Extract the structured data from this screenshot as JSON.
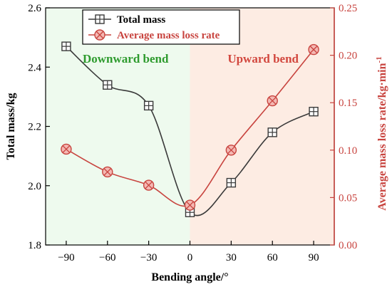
{
  "chart_data": {
    "type": "line",
    "x": [
      -90,
      -60,
      -30,
      0,
      30,
      60,
      90
    ],
    "xticks": [
      "−90",
      "−60",
      "−30",
      "0",
      "30",
      "60",
      "90"
    ],
    "xlabel": "Bending angle/°",
    "xlim": [
      -105,
      105
    ],
    "ylabel_left": "Total mass/kg",
    "ylim_left": [
      1.8,
      2.6
    ],
    "yticks_left": [
      "1.8",
      "2.0",
      "2.2",
      "2.4",
      "2.6"
    ],
    "ylabel_right": "Average mass loss rate/kg·min",
    "ylabel_right_sup": "-1",
    "ylim_right": [
      0.0,
      0.25
    ],
    "yticks_right": [
      "0.00",
      "0.05",
      "0.10",
      "0.15",
      "0.20",
      "0.25"
    ],
    "series": [
      {
        "name": "Total mass",
        "axis": "left",
        "marker": "square-cross",
        "color": "#3a3a3a",
        "values": [
          2.47,
          2.34,
          2.27,
          1.91,
          2.01,
          2.18,
          2.25
        ]
      },
      {
        "name": "Average mass loss rate",
        "axis": "right",
        "marker": "circle-x",
        "color": "#c8443f",
        "values": [
          0.101,
          0.077,
          0.063,
          0.042,
          0.1,
          0.152,
          0.206
        ]
      }
    ],
    "regions": [
      {
        "label": "Downward bend",
        "from": -105,
        "to": 0,
        "color": "#eefaee",
        "text_color": "#2e9b2e"
      },
      {
        "label": "Upward bend",
        "from": 0,
        "to": 105,
        "color": "#fdece3",
        "text_color": "#d2473e"
      }
    ],
    "legend_position": "top-left",
    "grid": false,
    "right_axis_color": "#c8443f"
  }
}
